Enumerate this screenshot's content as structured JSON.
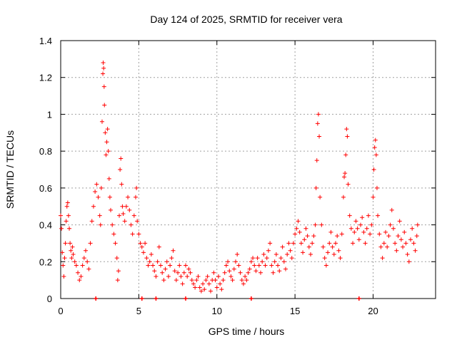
{
  "chart_data": {
    "type": "scatter",
    "title": "Day 124 of 2025, SRMTID for receiver vera",
    "xlabel": "GPS time / hours",
    "ylabel": "SRMTID / TECUs",
    "xlim": [
      0,
      24
    ],
    "ylim": [
      0,
      1.4
    ],
    "xticks": [
      0,
      5,
      10,
      15,
      20
    ],
    "xtick_labels": [
      "0",
      "5",
      "10",
      "15",
      "20"
    ],
    "yticks": [
      0,
      0.2,
      0.4,
      0.6,
      0.8,
      1.0,
      1.2,
      1.4
    ],
    "ytick_labels": [
      "0",
      "0.2",
      "0.4",
      "0.6",
      "0.8",
      "1",
      "1.2",
      "1.4"
    ],
    "grid": true,
    "marker": "+",
    "color": "#ff0000",
    "series": [
      {
        "name": "SRMTID",
        "points": [
          [
            0.0,
            0.45
          ],
          [
            0.05,
            0.38
          ],
          [
            0.1,
            0.25
          ],
          [
            0.15,
            0.18
          ],
          [
            0.2,
            0.12
          ],
          [
            0.25,
            0.22
          ],
          [
            0.3,
            0.3
          ],
          [
            0.35,
            0.42
          ],
          [
            0.4,
            0.5
          ],
          [
            0.45,
            0.52
          ],
          [
            0.5,
            0.45
          ],
          [
            0.55,
            0.38
          ],
          [
            0.6,
            0.3
          ],
          [
            0.65,
            0.26
          ],
          [
            0.7,
            0.22
          ],
          [
            0.75,
            0.28
          ],
          [
            0.8,
            0.24
          ],
          [
            0.9,
            0.2
          ],
          [
            1.0,
            0.18
          ],
          [
            1.1,
            0.14
          ],
          [
            1.2,
            0.1
          ],
          [
            1.3,
            0.12
          ],
          [
            1.4,
            0.18
          ],
          [
            1.5,
            0.22
          ],
          [
            1.6,
            0.26
          ],
          [
            1.7,
            0.2
          ],
          [
            1.8,
            0.16
          ],
          [
            1.9,
            0.3
          ],
          [
            2.0,
            0.42
          ],
          [
            2.1,
            0.5
          ],
          [
            2.2,
            0.58
          ],
          [
            2.3,
            0.62
          ],
          [
            2.4,
            0.55
          ],
          [
            2.5,
            0.45
          ],
          [
            2.55,
            0.4
          ],
          [
            2.6,
            0.6
          ],
          [
            2.65,
            0.96
          ],
          [
            2.7,
            1.22
          ],
          [
            2.72,
            1.28
          ],
          [
            2.75,
            1.25
          ],
          [
            2.78,
            1.15
          ],
          [
            2.8,
            1.05
          ],
          [
            2.85,
            0.9
          ],
          [
            2.9,
            0.78
          ],
          [
            2.95,
            0.85
          ],
          [
            3.0,
            0.92
          ],
          [
            3.05,
            0.8
          ],
          [
            3.1,
            0.65
          ],
          [
            3.15,
            0.55
          ],
          [
            3.2,
            0.48
          ],
          [
            3.3,
            0.4
          ],
          [
            3.4,
            0.35
          ],
          [
            3.5,
            0.3
          ],
          [
            3.6,
            0.22
          ],
          [
            3.65,
            0.1
          ],
          [
            3.7,
            0.15
          ],
          [
            3.75,
            0.45
          ],
          [
            3.8,
            0.7
          ],
          [
            3.85,
            0.76
          ],
          [
            3.9,
            0.62
          ],
          [
            3.95,
            0.5
          ],
          [
            4.0,
            0.46
          ],
          [
            4.1,
            0.42
          ],
          [
            4.2,
            0.5
          ],
          [
            4.3,
            0.55
          ],
          [
            4.4,
            0.48
          ],
          [
            4.5,
            0.4
          ],
          [
            4.6,
            0.35
          ],
          [
            4.7,
            0.45
          ],
          [
            4.8,
            0.55
          ],
          [
            4.85,
            0.6
          ],
          [
            4.9,
            0.42
          ],
          [
            5.0,
            0.35
          ],
          [
            5.1,
            0.3
          ],
          [
            5.2,
            0.28
          ],
          [
            5.3,
            0.25
          ],
          [
            5.4,
            0.3
          ],
          [
            5.5,
            0.22
          ],
          [
            5.6,
            0.18
          ],
          [
            5.7,
            0.2
          ],
          [
            5.8,
            0.24
          ],
          [
            5.9,
            0.18
          ],
          [
            6.0,
            0.15
          ],
          [
            6.1,
            0.12
          ],
          [
            6.2,
            0.2
          ],
          [
            6.3,
            0.28
          ],
          [
            6.4,
            0.18
          ],
          [
            6.5,
            0.14
          ],
          [
            6.6,
            0.1
          ],
          [
            6.7,
            0.16
          ],
          [
            6.8,
            0.2
          ],
          [
            6.9,
            0.12
          ],
          [
            7.0,
            0.18
          ],
          [
            7.1,
            0.22
          ],
          [
            7.2,
            0.26
          ],
          [
            7.3,
            0.15
          ],
          [
            7.4,
            0.1
          ],
          [
            7.5,
            0.14
          ],
          [
            7.6,
            0.18
          ],
          [
            7.7,
            0.12
          ],
          [
            7.8,
            0.08
          ],
          [
            7.9,
            0.14
          ],
          [
            8.0,
            0.18
          ],
          [
            8.1,
            0.12
          ],
          [
            8.2,
            0.16
          ],
          [
            8.3,
            0.14
          ],
          [
            8.4,
            0.1
          ],
          [
            8.5,
            0.08
          ],
          [
            8.6,
            0.06
          ],
          [
            8.7,
            0.1
          ],
          [
            8.8,
            0.12
          ],
          [
            8.9,
            0.06
          ],
          [
            9.0,
            0.04
          ],
          [
            9.1,
            0.08
          ],
          [
            9.2,
            0.05
          ],
          [
            9.3,
            0.1
          ],
          [
            9.4,
            0.12
          ],
          [
            9.5,
            0.08
          ],
          [
            9.6,
            0.04
          ],
          [
            9.7,
            0.1
          ],
          [
            9.8,
            0.14
          ],
          [
            9.9,
            0.1
          ],
          [
            10.0,
            0.06
          ],
          [
            10.1,
            0.12
          ],
          [
            10.2,
            0.08
          ],
          [
            10.3,
            0.05
          ],
          [
            10.4,
            0.1
          ],
          [
            10.5,
            0.14
          ],
          [
            10.6,
            0.18
          ],
          [
            10.7,
            0.2
          ],
          [
            10.8,
            0.15
          ],
          [
            10.9,
            0.12
          ],
          [
            11.0,
            0.1
          ],
          [
            11.1,
            0.16
          ],
          [
            11.2,
            0.2
          ],
          [
            11.3,
            0.24
          ],
          [
            11.4,
            0.18
          ],
          [
            11.5,
            0.14
          ],
          [
            11.6,
            0.1
          ],
          [
            11.7,
            0.08
          ],
          [
            11.8,
            0.12
          ],
          [
            11.9,
            0.1
          ],
          [
            12.0,
            0.14
          ],
          [
            12.1,
            0.16
          ],
          [
            12.2,
            0.2
          ],
          [
            12.3,
            0.22
          ],
          [
            12.4,
            0.18
          ],
          [
            12.5,
            0.15
          ],
          [
            12.6,
            0.22
          ],
          [
            12.7,
            0.18
          ],
          [
            12.8,
            0.14
          ],
          [
            12.9,
            0.2
          ],
          [
            13.0,
            0.24
          ],
          [
            13.1,
            0.18
          ],
          [
            13.2,
            0.22
          ],
          [
            13.3,
            0.26
          ],
          [
            13.4,
            0.3
          ],
          [
            13.5,
            0.18
          ],
          [
            13.6,
            0.14
          ],
          [
            13.7,
            0.2
          ],
          [
            13.8,
            0.24
          ],
          [
            13.9,
            0.18
          ],
          [
            14.0,
            0.15
          ],
          [
            14.1,
            0.22
          ],
          [
            14.2,
            0.28
          ],
          [
            14.3,
            0.2
          ],
          [
            14.4,
            0.16
          ],
          [
            14.5,
            0.24
          ],
          [
            14.6,
            0.3
          ],
          [
            14.7,
            0.26
          ],
          [
            14.8,
            0.22
          ],
          [
            14.9,
            0.3
          ],
          [
            15.0,
            0.35
          ],
          [
            15.1,
            0.38
          ],
          [
            15.2,
            0.42
          ],
          [
            15.3,
            0.36
          ],
          [
            15.4,
            0.3
          ],
          [
            15.5,
            0.25
          ],
          [
            15.6,
            0.32
          ],
          [
            15.7,
            0.38
          ],
          [
            15.8,
            0.34
          ],
          [
            15.9,
            0.28
          ],
          [
            16.0,
            0.24
          ],
          [
            16.1,
            0.3
          ],
          [
            16.2,
            0.34
          ],
          [
            16.3,
            0.4
          ],
          [
            16.35,
            0.6
          ],
          [
            16.4,
            0.75
          ],
          [
            16.45,
            0.95
          ],
          [
            16.5,
            1.0
          ],
          [
            16.55,
            0.88
          ],
          [
            16.6,
            0.55
          ],
          [
            16.7,
            0.4
          ],
          [
            16.8,
            0.28
          ],
          [
            16.9,
            0.22
          ],
          [
            17.0,
            0.18
          ],
          [
            17.1,
            0.25
          ],
          [
            17.2,
            0.3
          ],
          [
            17.3,
            0.36
          ],
          [
            17.4,
            0.28
          ],
          [
            17.5,
            0.24
          ],
          [
            17.6,
            0.3
          ],
          [
            17.7,
            0.34
          ],
          [
            17.8,
            0.26
          ],
          [
            17.9,
            0.22
          ],
          [
            18.0,
            0.35
          ],
          [
            18.1,
            0.55
          ],
          [
            18.15,
            0.66
          ],
          [
            18.2,
            0.68
          ],
          [
            18.25,
            0.78
          ],
          [
            18.3,
            0.92
          ],
          [
            18.35,
            0.88
          ],
          [
            18.4,
            0.62
          ],
          [
            18.5,
            0.45
          ],
          [
            18.6,
            0.38
          ],
          [
            18.7,
            0.3
          ],
          [
            18.8,
            0.36
          ],
          [
            18.9,
            0.42
          ],
          [
            19.0,
            0.38
          ],
          [
            19.1,
            0.32
          ],
          [
            19.2,
            0.4
          ],
          [
            19.3,
            0.44
          ],
          [
            19.4,
            0.36
          ],
          [
            19.5,
            0.3
          ],
          [
            19.6,
            0.38
          ],
          [
            19.7,
            0.45
          ],
          [
            19.8,
            0.35
          ],
          [
            19.9,
            0.4
          ],
          [
            20.0,
            0.55
          ],
          [
            20.05,
            0.7
          ],
          [
            20.1,
            0.82
          ],
          [
            20.15,
            0.86
          ],
          [
            20.2,
            0.78
          ],
          [
            20.25,
            0.6
          ],
          [
            20.3,
            0.45
          ],
          [
            20.4,
            0.35
          ],
          [
            20.5,
            0.28
          ],
          [
            20.6,
            0.22
          ],
          [
            20.7,
            0.3
          ],
          [
            20.8,
            0.36
          ],
          [
            20.9,
            0.28
          ],
          [
            21.0,
            0.34
          ],
          [
            21.1,
            0.4
          ],
          [
            21.2,
            0.48
          ],
          [
            21.3,
            0.38
          ],
          [
            21.4,
            0.3
          ],
          [
            21.5,
            0.26
          ],
          [
            21.6,
            0.34
          ],
          [
            21.7,
            0.42
          ],
          [
            21.8,
            0.32
          ],
          [
            21.9,
            0.28
          ],
          [
            22.0,
            0.36
          ],
          [
            22.1,
            0.3
          ],
          [
            22.2,
            0.24
          ],
          [
            22.3,
            0.2
          ],
          [
            22.4,
            0.32
          ],
          [
            22.5,
            0.38
          ],
          [
            22.6,
            0.3
          ],
          [
            22.7,
            0.26
          ],
          [
            22.8,
            0.34
          ],
          [
            22.85,
            0.4
          ]
        ],
        "zero_points": [
          2.25,
          5.2,
          6.1,
          8.0,
          12.2,
          19.1
        ]
      }
    ]
  }
}
